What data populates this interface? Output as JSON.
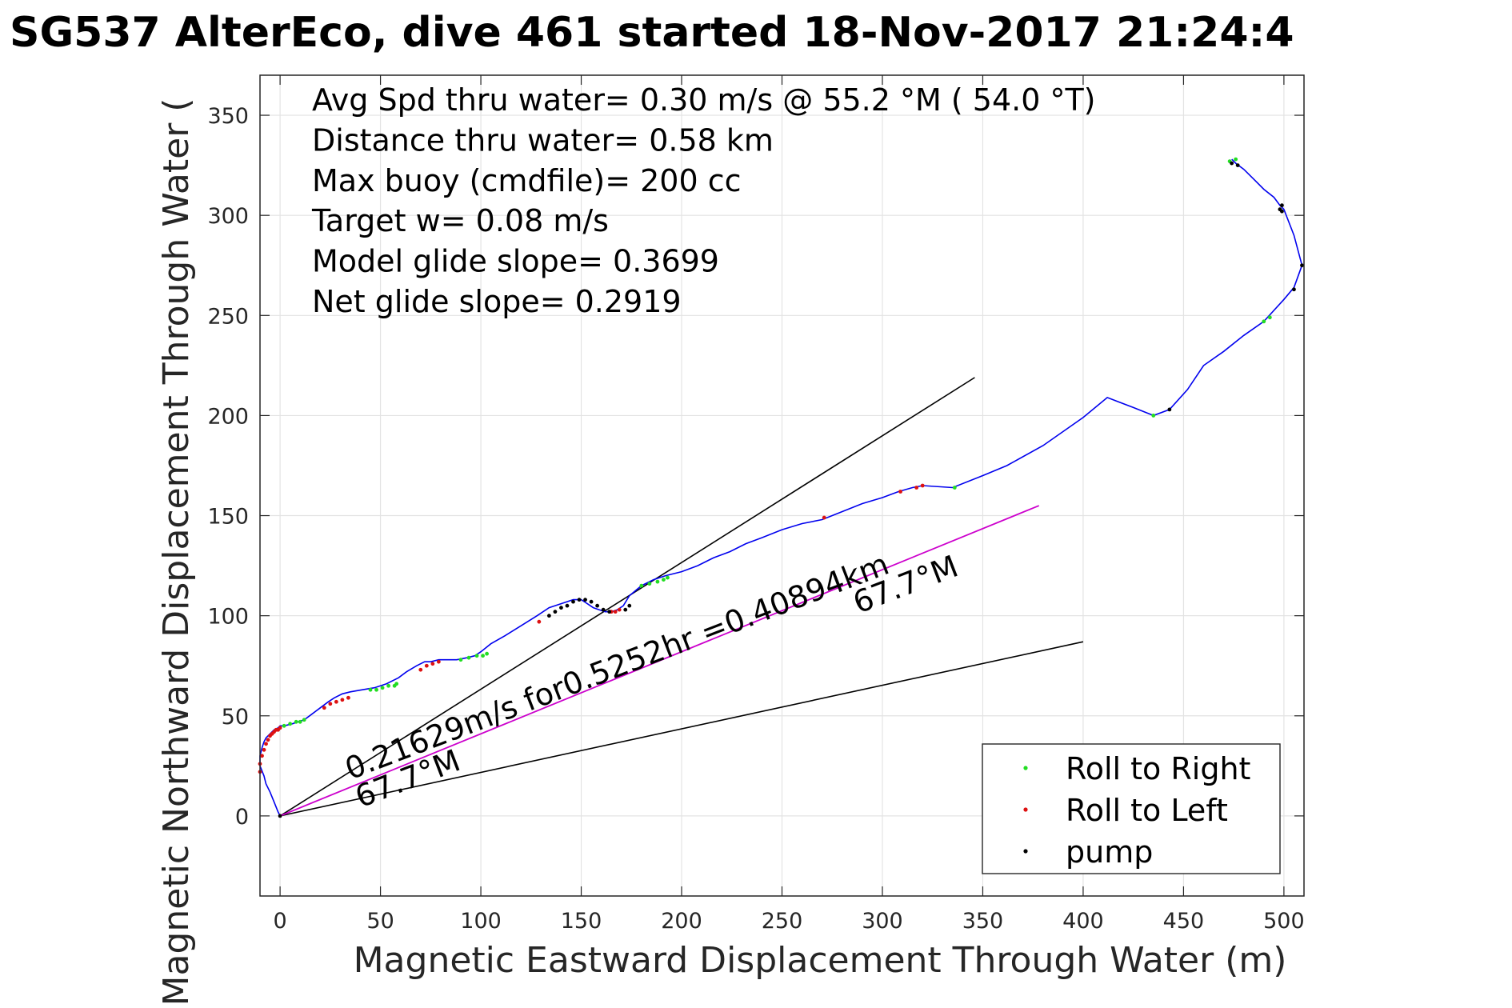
{
  "chart_data": {
    "type": "line",
    "title": "SG537 AlterEco, dive 461 started 18-Nov-2017 21:24:4",
    "xlabel": "Magnetic Eastward Displacement Through Water (m)",
    "ylabel": "Magnetic Northward Displacement Through Water (",
    "xlim": [
      -10,
      510
    ],
    "ylim": [
      -40,
      370
    ],
    "x_ticks": [
      0,
      50,
      100,
      150,
      200,
      250,
      300,
      350,
      400,
      450,
      500
    ],
    "y_ticks": [
      0,
      50,
      100,
      150,
      200,
      250,
      300,
      350
    ],
    "grid": true,
    "info_lines": [
      "Avg Spd thru water=  0.30 m/s @  55.2 °M ( 54.0 °T)",
      "Distance thru water=  0.58 km",
      "Max buoy (cmdfile)= 200 cc",
      "Target w= 0.08 m/s",
      "Model glide slope= 0.3699",
      "Net glide slope= 0.2919"
    ],
    "legend": {
      "position": "bottom-right",
      "entries": [
        {
          "label": "Roll to Right",
          "color": "#22dd22"
        },
        {
          "label": "Roll to Left",
          "color": "#dd1111"
        },
        {
          "label": "pump",
          "color": "#000000"
        }
      ]
    },
    "annotations": [
      {
        "text": "0.21629m/s for0.5252hr =0.40894km",
        "x": 35,
        "y": 18,
        "angle": -21
      },
      {
        "text": "67.7°M",
        "x": 40,
        "y": 4,
        "angle": -21
      },
      {
        "text": "67.7°M",
        "x": 288,
        "y": 101,
        "angle": -21
      }
    ],
    "colors": {
      "track": "#0000ee",
      "heading_line": "#cc00cc",
      "bound_lines": "#000000",
      "axis": "#262626",
      "grid": "#e3e3e3"
    },
    "series": [
      {
        "name": "track",
        "x": [
          0,
          -1,
          -3,
          -5,
          -7,
          -8,
          -10,
          -10,
          -9,
          -8,
          -7,
          -5,
          -3,
          -1,
          0,
          2,
          6,
          9,
          12,
          16,
          20,
          24,
          27,
          31,
          35,
          41,
          47,
          53,
          59,
          63,
          68,
          72,
          75,
          79,
          88,
          93,
          97,
          100,
          105,
          112,
          120,
          128,
          134,
          140,
          146,
          150,
          153,
          156,
          159,
          162,
          165,
          168,
          171,
          174,
          180,
          186,
          192,
          200,
          208,
          216,
          224,
          232,
          240,
          250,
          260,
          270,
          280,
          290,
          300,
          308,
          315,
          320,
          335,
          350,
          362,
          380,
          400,
          412,
          425,
          435,
          443,
          452,
          460,
          470,
          480,
          490,
          500,
          505,
          509,
          505,
          500,
          498,
          495,
          490,
          485,
          480,
          476,
          474
        ],
        "y": [
          0,
          2,
          7,
          12,
          16,
          20,
          25,
          30,
          34,
          37,
          39,
          41,
          43,
          44,
          45,
          45,
          46,
          47,
          48,
          51,
          54,
          57,
          59,
          61,
          62,
          63,
          64,
          66,
          69,
          72,
          75,
          77,
          77,
          78,
          78,
          79,
          80,
          82,
          86,
          90,
          95,
          100,
          104,
          106,
          108,
          108,
          106,
          104,
          103,
          102,
          102,
          103,
          105,
          110,
          115,
          118,
          120,
          122,
          125,
          129,
          132,
          136,
          139,
          143,
          146,
          148,
          152,
          156,
          159,
          162,
          164,
          165,
          164,
          170,
          175,
          185,
          199,
          209,
          204,
          200,
          203,
          213,
          225,
          232,
          240,
          247,
          258,
          264,
          275,
          290,
          303,
          305,
          309,
          313,
          318,
          323,
          326,
          328
        ]
      },
      {
        "name": "Roll to Right",
        "x": [
          2,
          5,
          8,
          10,
          12,
          45,
          48,
          51,
          54,
          57,
          58,
          90,
          94,
          98,
          101,
          103,
          180,
          184,
          188,
          191,
          193,
          336,
          435,
          490,
          493,
          473,
          476
        ],
        "y": [
          45,
          46,
          47,
          47,
          48,
          63,
          63,
          64,
          65,
          65,
          66,
          78,
          79,
          80,
          80,
          81,
          115,
          116,
          117,
          118,
          119,
          164,
          200,
          247,
          249,
          327,
          328
        ]
      },
      {
        "name": "Roll to Left",
        "x": [
          -10,
          -10,
          -9,
          -8,
          -7,
          -6,
          -5,
          -4,
          -3,
          -2,
          -1,
          0,
          22,
          25,
          28,
          31,
          34,
          70,
          73,
          76,
          79,
          129,
          165,
          167,
          169,
          271,
          309,
          317,
          320
        ],
        "y": [
          22,
          26,
          30,
          33,
          36,
          38,
          40,
          41,
          42,
          43,
          43,
          44,
          54,
          56,
          57,
          58,
          59,
          73,
          75,
          76,
          77,
          97,
          102,
          102,
          103,
          149,
          162,
          164,
          165
        ],
        "draw": "dots"
      },
      {
        "name": "pump",
        "x": [
          0,
          134,
          137,
          140,
          143,
          146,
          149,
          152,
          155,
          158,
          161,
          164,
          172,
          174,
          443,
          498,
          499,
          499,
          505,
          509,
          474,
          477
        ],
        "y": [
          0,
          100,
          102,
          104,
          105,
          107,
          108,
          108,
          107,
          105,
          103,
          102,
          103,
          105,
          203,
          303,
          305,
          302,
          263,
          275,
          326,
          325
        ],
        "draw": "dots"
      },
      {
        "name": "heading line",
        "x": [
          0,
          378
        ],
        "y": [
          0,
          155
        ]
      },
      {
        "name": "upper bound",
        "x": [
          0,
          346
        ],
        "y": [
          0,
          219
        ]
      },
      {
        "name": "lower bound",
        "x": [
          0,
          400
        ],
        "y": [
          0,
          87
        ]
      }
    ]
  }
}
